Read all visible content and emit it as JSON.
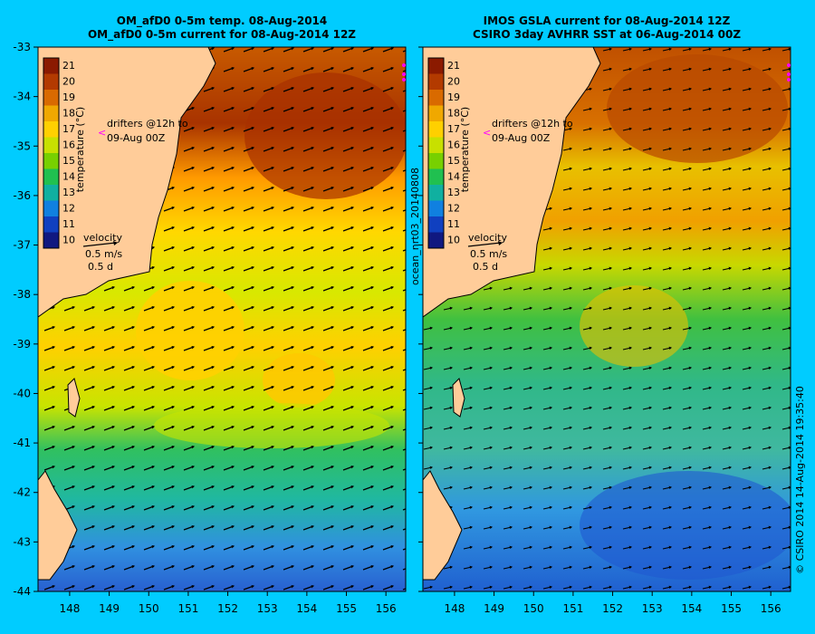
{
  "left_panel": {
    "title_line1": "OM_afD0 0-5m temp. 08-Aug-2014",
    "title_line2": "OM_afD0 0-5m current for 08-Aug-2014 12Z"
  },
  "right_panel": {
    "title_line1": "IMOS GSLA current for 08-Aug-2014 12Z",
    "title_line2": "CSIRO 3day AVHRR SST at 06-Aug-2014 00Z"
  },
  "colorbar": {
    "label": "temperature (°C)",
    "ticks": [
      "21",
      "20",
      "19",
      "18",
      "17",
      "16",
      "15",
      "14",
      "13",
      "12",
      "11",
      "10"
    ],
    "colors": [
      "#8b1a00",
      "#b33a00",
      "#d96a00",
      "#f0a800",
      "#ffd000",
      "#c8e000",
      "#78d000",
      "#20c050",
      "#10b0a0",
      "#1080e0",
      "#1040c0",
      "#101880"
    ]
  },
  "annotations": {
    "drifters_line1": "drifters @12h to",
    "drifters_line2": "09-Aug 00Z",
    "velocity_label": "velocity",
    "velocity_speed": "0.5 m/s",
    "velocity_time": "0.5 d",
    "middle_vertical": "ocean_nrt03_20140808",
    "right_vertical": "© CSIRO 2014   14-Aug-2014 19:35:40"
  },
  "axes": {
    "x_ticks": [
      "148",
      "149",
      "150",
      "151",
      "152",
      "153",
      "154",
      "155",
      "156"
    ],
    "y_ticks": [
      "-33",
      "-34",
      "-35",
      "-36",
      "-37",
      "-38",
      "-39",
      "-40",
      "-41",
      "-42",
      "-43",
      "-44"
    ],
    "lon_range": [
      147.2,
      156.5
    ],
    "lat_range": [
      -44,
      -33
    ]
  },
  "colors": {
    "background": "#00ccff",
    "land": "#ffcc99",
    "drifter": "#ff00ff"
  }
}
